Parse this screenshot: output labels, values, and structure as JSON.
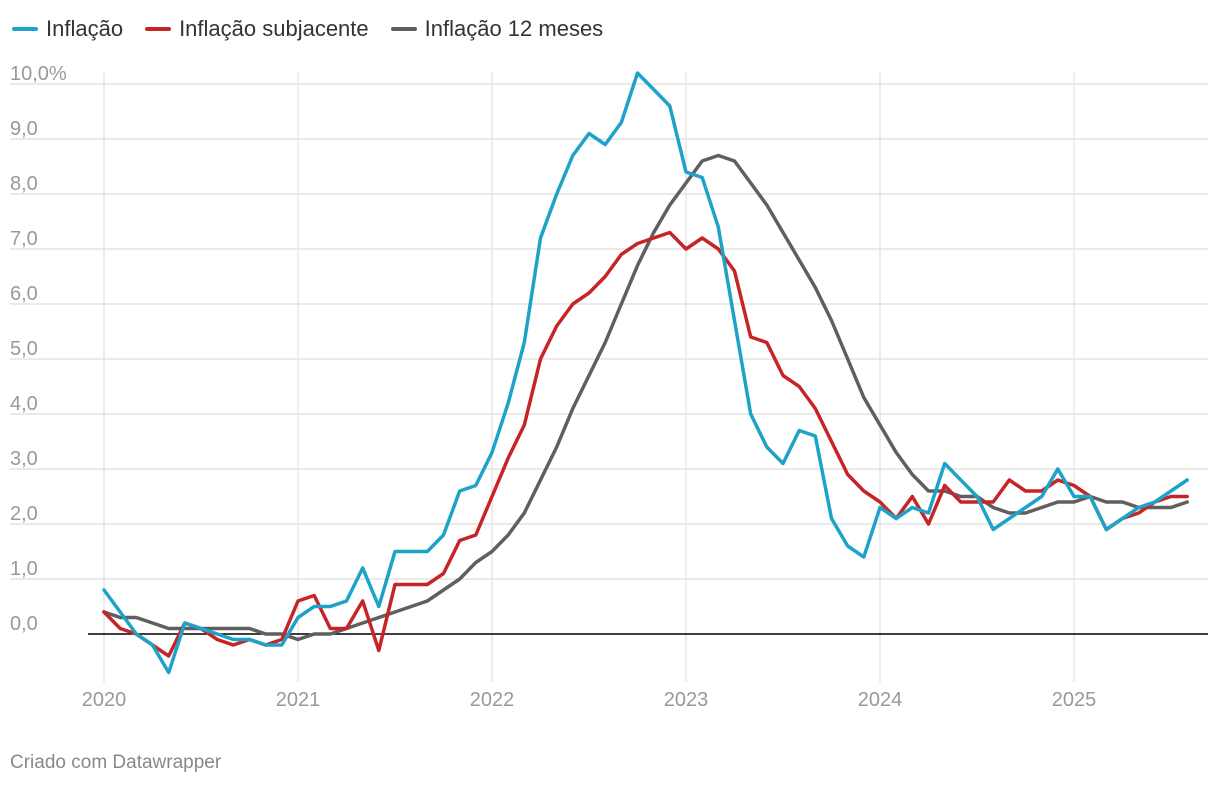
{
  "chart_data": {
    "type": "line",
    "title": "",
    "xlabel": "",
    "ylabel": "",
    "x_start": "2020-01",
    "x_tick_labels": [
      "2020",
      "2021",
      "2022",
      "2023",
      "2024",
      "2025"
    ],
    "y_tick_labels": [
      "-",
      "0,0",
      "1,0",
      "2,0",
      "3,0",
      "4,0",
      "5,0",
      "6,0",
      "7,0",
      "8,0",
      "9,0",
      "10,0%"
    ],
    "y_ticks": [
      0,
      1,
      2,
      3,
      4,
      5,
      6,
      7,
      8,
      9,
      10
    ],
    "ylim": [
      -0.7,
      10.3
    ],
    "legend_position": "top-left",
    "series": [
      {
        "name": "Inflação",
        "color": "#1ea3c8",
        "values": [
          0.8,
          0.4,
          0.0,
          -0.2,
          -0.7,
          0.2,
          0.1,
          0.0,
          -0.1,
          -0.1,
          -0.2,
          -0.2,
          0.3,
          0.5,
          0.5,
          0.6,
          1.2,
          0.5,
          1.5,
          1.5,
          1.5,
          1.8,
          2.6,
          2.7,
          3.3,
          4.2,
          5.3,
          7.2,
          8.0,
          8.7,
          9.1,
          8.9,
          9.3,
          10.2,
          9.9,
          9.6,
          8.4,
          8.3,
          7.4,
          5.7,
          4.0,
          3.4,
          3.1,
          3.7,
          3.6,
          2.1,
          1.6,
          1.4,
          2.3,
          2.1,
          2.3,
          2.2,
          3.1,
          2.8,
          2.5,
          1.9,
          2.1,
          2.3,
          2.5,
          3.0,
          2.5,
          2.5,
          1.9,
          2.1,
          2.3,
          2.4,
          2.6,
          2.8
        ]
      },
      {
        "name": "Inflação subjacente",
        "color": "#c72428",
        "values": [
          0.4,
          0.1,
          0.0,
          -0.2,
          -0.4,
          0.2,
          0.1,
          -0.1,
          -0.2,
          -0.1,
          -0.2,
          -0.1,
          0.6,
          0.7,
          0.1,
          0.1,
          0.6,
          -0.3,
          0.9,
          0.9,
          0.9,
          1.1,
          1.7,
          1.8,
          2.5,
          3.2,
          3.8,
          5.0,
          5.6,
          6.0,
          6.2,
          6.5,
          6.9,
          7.1,
          7.2,
          7.3,
          7.0,
          7.2,
          7.0,
          6.6,
          5.4,
          5.3,
          4.7,
          4.5,
          4.1,
          3.5,
          2.9,
          2.6,
          2.4,
          2.1,
          2.5,
          2.0,
          2.7,
          2.4,
          2.4,
          2.4,
          2.8,
          2.6,
          2.6,
          2.8,
          2.7,
          2.5,
          1.9,
          2.1,
          2.2,
          2.4,
          2.5,
          2.5
        ]
      },
      {
        "name": "Inflação 12 meses",
        "color": "#5f5f5f",
        "values": [
          0.4,
          0.3,
          0.3,
          0.2,
          0.1,
          0.1,
          0.1,
          0.1,
          0.1,
          0.1,
          0.0,
          0.0,
          -0.1,
          0.0,
          0.0,
          0.1,
          0.2,
          0.3,
          0.4,
          0.5,
          0.6,
          0.8,
          1.0,
          1.3,
          1.5,
          1.8,
          2.2,
          2.8,
          3.4,
          4.1,
          4.7,
          5.3,
          6.0,
          6.7,
          7.3,
          7.8,
          8.2,
          8.6,
          8.7,
          8.6,
          8.2,
          7.8,
          7.3,
          6.8,
          6.3,
          5.7,
          5.0,
          4.3,
          3.8,
          3.3,
          2.9,
          2.6,
          2.6,
          2.5,
          2.5,
          2.3,
          2.2,
          2.2,
          2.3,
          2.4,
          2.4,
          2.5,
          2.4,
          2.4,
          2.3,
          2.3,
          2.3,
          2.4
        ]
      }
    ]
  },
  "credit": "Criado com Datawrapper"
}
